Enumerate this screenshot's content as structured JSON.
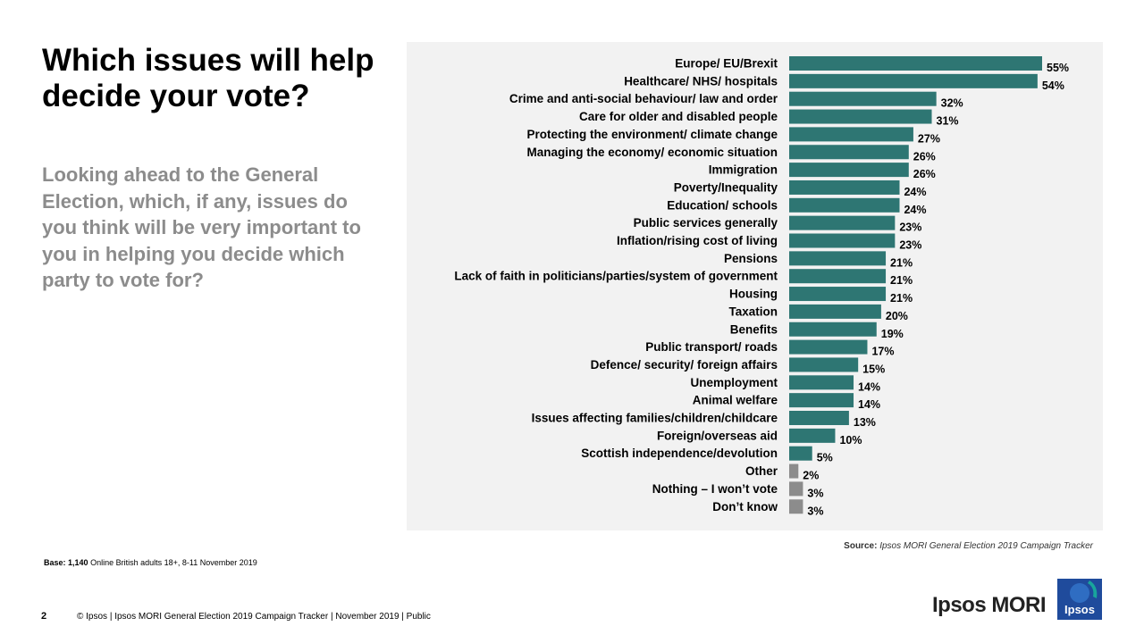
{
  "title": "Which issues will help decide your vote?",
  "subtitle": "Looking ahead to the General Election, which, if any, issues do you think will be very important to you in helping you decide which party to vote for?",
  "source": {
    "label": "Source:",
    "text": "Ipsos MORI General Election 2019 Campaign Tracker"
  },
  "base": {
    "label": "Base: 1,140",
    "text": "Online British adults 18+,  8-11 November 2019"
  },
  "footer": {
    "page_number": "2",
    "text": "© Ipsos | Ipsos MORI  General Election 2019 Campaign Tracker | November 2019 | Public"
  },
  "brand": {
    "name": "Ipsos MORI",
    "logo_text": "Ipsos"
  },
  "colors": {
    "primary_bar": "#2e7673",
    "other_bar": "#8c8c8c",
    "panel_bg": "#f2f2f2",
    "logo_bg": "#1f4b9c"
  },
  "chart_data": {
    "type": "bar",
    "orientation": "horizontal",
    "title": "Which issues will help decide your vote?",
    "xlabel": "",
    "ylabel": "",
    "xlim": [
      0,
      55
    ],
    "grid": false,
    "value_suffix": "%",
    "categories": [
      "Europe/ EU/Brexit",
      "Healthcare/ NHS/ hospitals",
      "Crime and anti-social behaviour/ law and order",
      "Care for older and disabled people",
      "Protecting the environment/ climate change",
      "Managing the economy/ economic situation",
      "Immigration",
      "Poverty/Inequality",
      "Education/ schools",
      "Public services generally",
      "Inflation/rising cost of living",
      "Pensions",
      "Lack of faith in politicians/parties/system of government",
      "Housing",
      "Taxation",
      "Benefits",
      "Public transport/ roads",
      "Defence/ security/ foreign affairs",
      "Unemployment",
      "Animal welfare",
      "Issues affecting families/children/childcare",
      "Foreign/overseas aid",
      "Scottish independence/devolution",
      "Other",
      "Nothing – I won’t vote",
      "Don’t know"
    ],
    "values": [
      55,
      54,
      32,
      31,
      27,
      26,
      26,
      24,
      24,
      23,
      23,
      21,
      21,
      21,
      20,
      19,
      17,
      15,
      14,
      14,
      13,
      10,
      5,
      2,
      3,
      3
    ],
    "bar_color_group": [
      "issue",
      "issue",
      "issue",
      "issue",
      "issue",
      "issue",
      "issue",
      "issue",
      "issue",
      "issue",
      "issue",
      "issue",
      "issue",
      "issue",
      "issue",
      "issue",
      "issue",
      "issue",
      "issue",
      "issue",
      "issue",
      "issue",
      "issue",
      "other",
      "other",
      "other"
    ]
  }
}
